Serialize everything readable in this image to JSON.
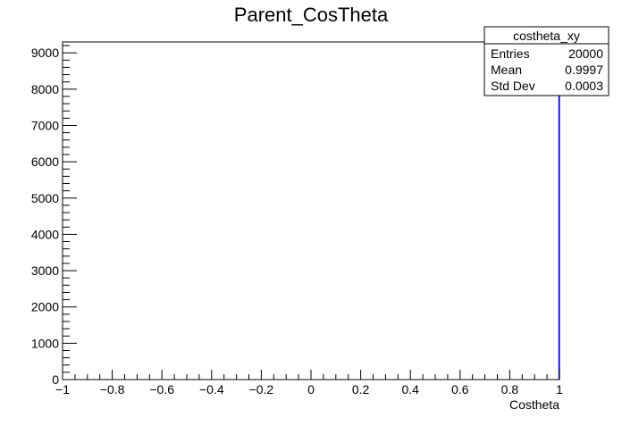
{
  "chart_data": {
    "type": "histogram",
    "title": "Parent_CosTheta",
    "xlabel": "Costheta",
    "ylabel": "",
    "xlim": [
      -1,
      1
    ],
    "ylim": [
      0,
      9300
    ],
    "x_ticks": [
      "−1",
      "−0.8",
      "−0.6",
      "−0.4",
      "−0.2",
      "0",
      "0.2",
      "0.4",
      "0.6",
      "0.8",
      "1"
    ],
    "x_tick_values": [
      -1,
      -0.8,
      -0.6,
      -0.4,
      -0.2,
      0,
      0.2,
      0.4,
      0.6,
      0.8,
      1
    ],
    "y_ticks": [
      "0",
      "1000",
      "2000",
      "3000",
      "4000",
      "5000",
      "6000",
      "7000",
      "8000",
      "9000"
    ],
    "y_tick_values": [
      0,
      1000,
      2000,
      3000,
      4000,
      5000,
      6000,
      7000,
      8000,
      9000
    ],
    "series": [
      {
        "color": "#0000cc",
        "bin_low": 0.998,
        "bin_high": 1.0,
        "count": 20000
      }
    ],
    "stats_box": {
      "name": "costheta_xy",
      "rows": [
        {
          "label": "Entries",
          "value": "20000"
        },
        {
          "label": "Mean",
          "value": "0.9997"
        },
        {
          "label": "Std Dev",
          "value": "0.0003"
        }
      ]
    },
    "grid": false,
    "legend": "top-right"
  }
}
